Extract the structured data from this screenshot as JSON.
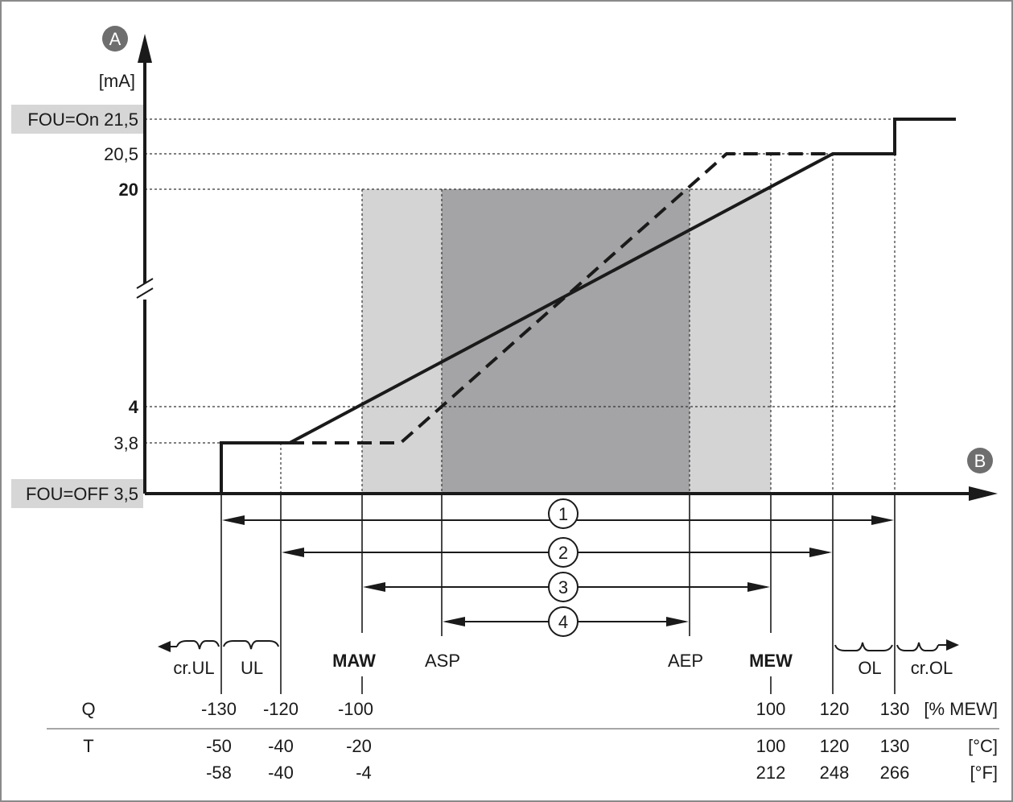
{
  "axes": {
    "y_badge": "A",
    "y_unit": "[mA]",
    "x_badge": "B"
  },
  "y_levels": [
    {
      "label": "FOU=On 21,5",
      "value": 21.5,
      "bold": false,
      "shaded": true
    },
    {
      "label": "20,5",
      "value": 20.5,
      "bold": false,
      "shaded": false
    },
    {
      "label": "20",
      "value": 20,
      "bold": true,
      "shaded": false
    },
    {
      "label": "4",
      "value": 4,
      "bold": true,
      "shaded": false
    },
    {
      "label": "3,8",
      "value": 3.8,
      "bold": false,
      "shaded": false
    },
    {
      "label": "FOU=OFF 3,5",
      "value": 3.5,
      "bold": false,
      "shaded": true
    }
  ],
  "points": [
    {
      "id": "cr_ul",
      "label": "",
      "q": "-130",
      "t_c": "-50",
      "t_f": "-58"
    },
    {
      "id": "ul",
      "label": "",
      "q": "-120",
      "t_c": "-40",
      "t_f": "-40"
    },
    {
      "id": "maw",
      "label": "MAW",
      "q": "-100",
      "t_c": "-20",
      "t_f": "-4",
      "bold": true
    },
    {
      "id": "asp",
      "label": "ASP",
      "q": "",
      "t_c": "",
      "t_f": ""
    },
    {
      "id": "aep",
      "label": "AEP",
      "q": "",
      "t_c": "",
      "t_f": ""
    },
    {
      "id": "mew",
      "label": "MEW",
      "q": "100",
      "t_c": "100",
      "t_f": "212",
      "bold": true
    },
    {
      "id": "ol",
      "label": "",
      "q": "120",
      "t_c": "120",
      "t_f": "248"
    },
    {
      "id": "cr_ol",
      "label": "",
      "q": "130",
      "t_c": "130",
      "t_f": "266"
    }
  ],
  "zones": {
    "cr_ul": "cr.UL",
    "ul": "UL",
    "ol": "OL",
    "cr_ol": "cr.OL"
  },
  "ranges": [
    "1",
    "2",
    "3",
    "4"
  ],
  "table": {
    "q_label": "Q",
    "q_unit": "[% MEW]",
    "t_label": "T",
    "t_unit_c": "[°C]",
    "t_unit_f": "[°F]"
  },
  "colors": {
    "line": "#1a1a1a",
    "shade_light": "#d4d4d4",
    "shade_dark": "#a4a4a6",
    "label_bg": "#d6d6d6",
    "badge": "#6e6e6e"
  }
}
